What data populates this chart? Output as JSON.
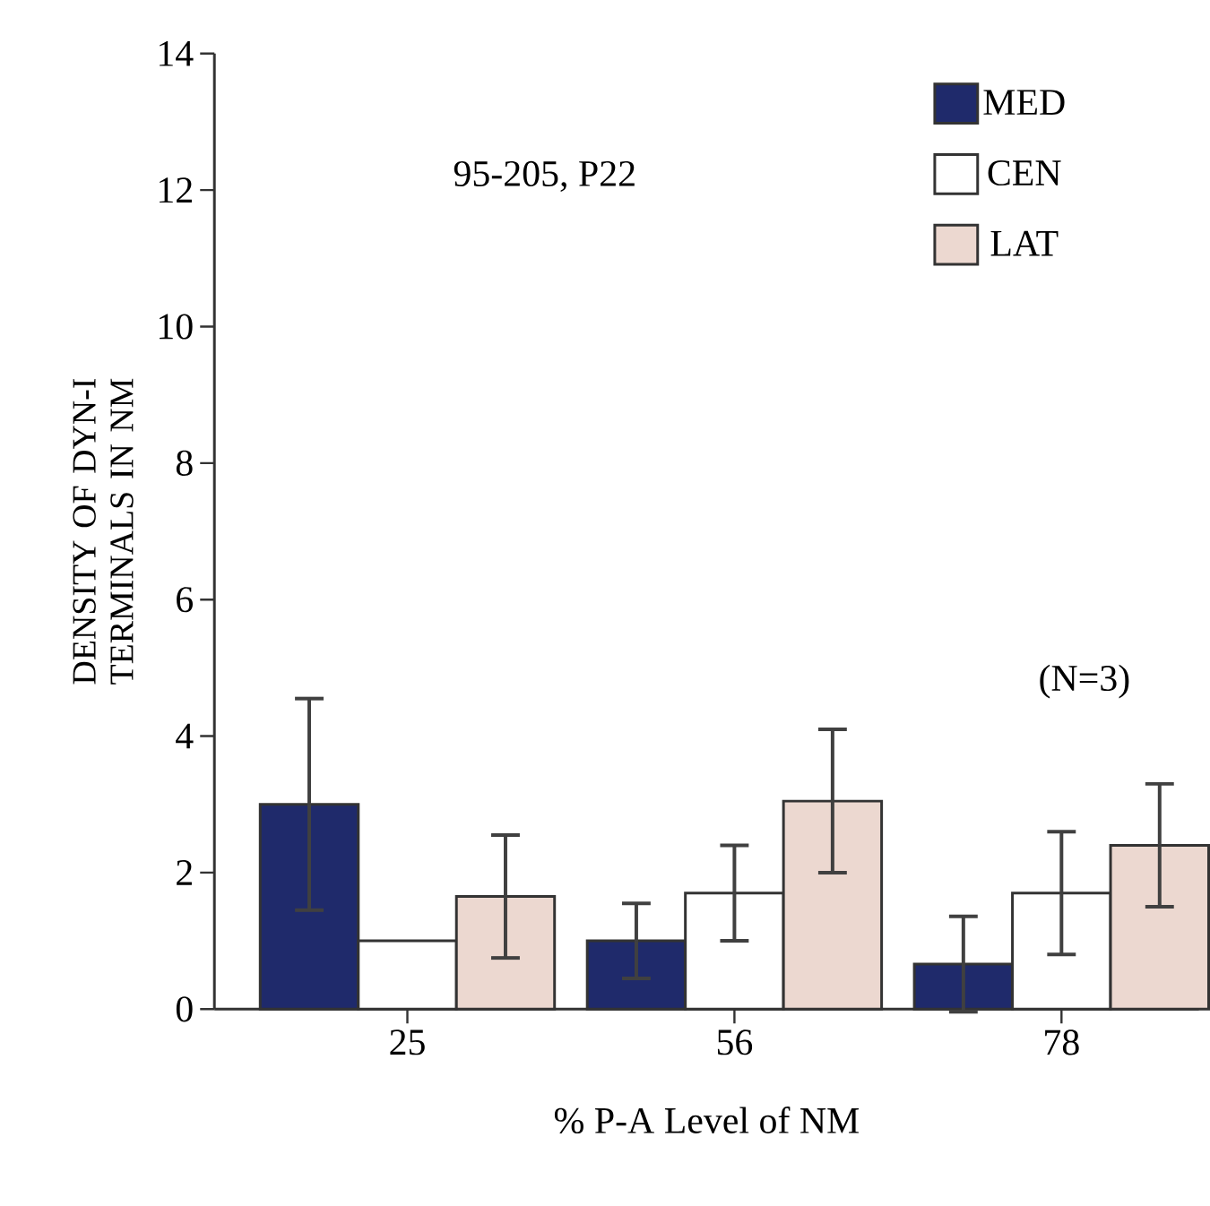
{
  "chart_data": {
    "type": "bar",
    "xlabel": "% P-A Level of NM",
    "ylabel": "DENSITY OF DYN-I TERMINALS IN NM",
    "categories": [
      "25",
      "56",
      "78"
    ],
    "series": [
      {
        "name": "MED",
        "color": "#1f2a6b",
        "values": [
          3.0,
          1.0,
          0.66
        ],
        "errors": [
          1.55,
          0.55,
          0.7
        ]
      },
      {
        "name": "CEN",
        "color": "#ffffff",
        "values": [
          1.0,
          1.7,
          1.7
        ],
        "errors": [
          null,
          0.7,
          0.9
        ]
      },
      {
        "name": "LAT",
        "color": "#ecd8d0",
        "values": [
          1.65,
          3.05,
          2.4
        ],
        "errors": [
          0.9,
          1.05,
          0.9
        ]
      }
    ],
    "ylim": [
      0,
      14
    ],
    "yticks": [
      0,
      2,
      4,
      6,
      8,
      10,
      12,
      14
    ],
    "legend": "top right",
    "grid": false,
    "annotations": [
      "95-205, P22",
      "(N=3)"
    ]
  }
}
